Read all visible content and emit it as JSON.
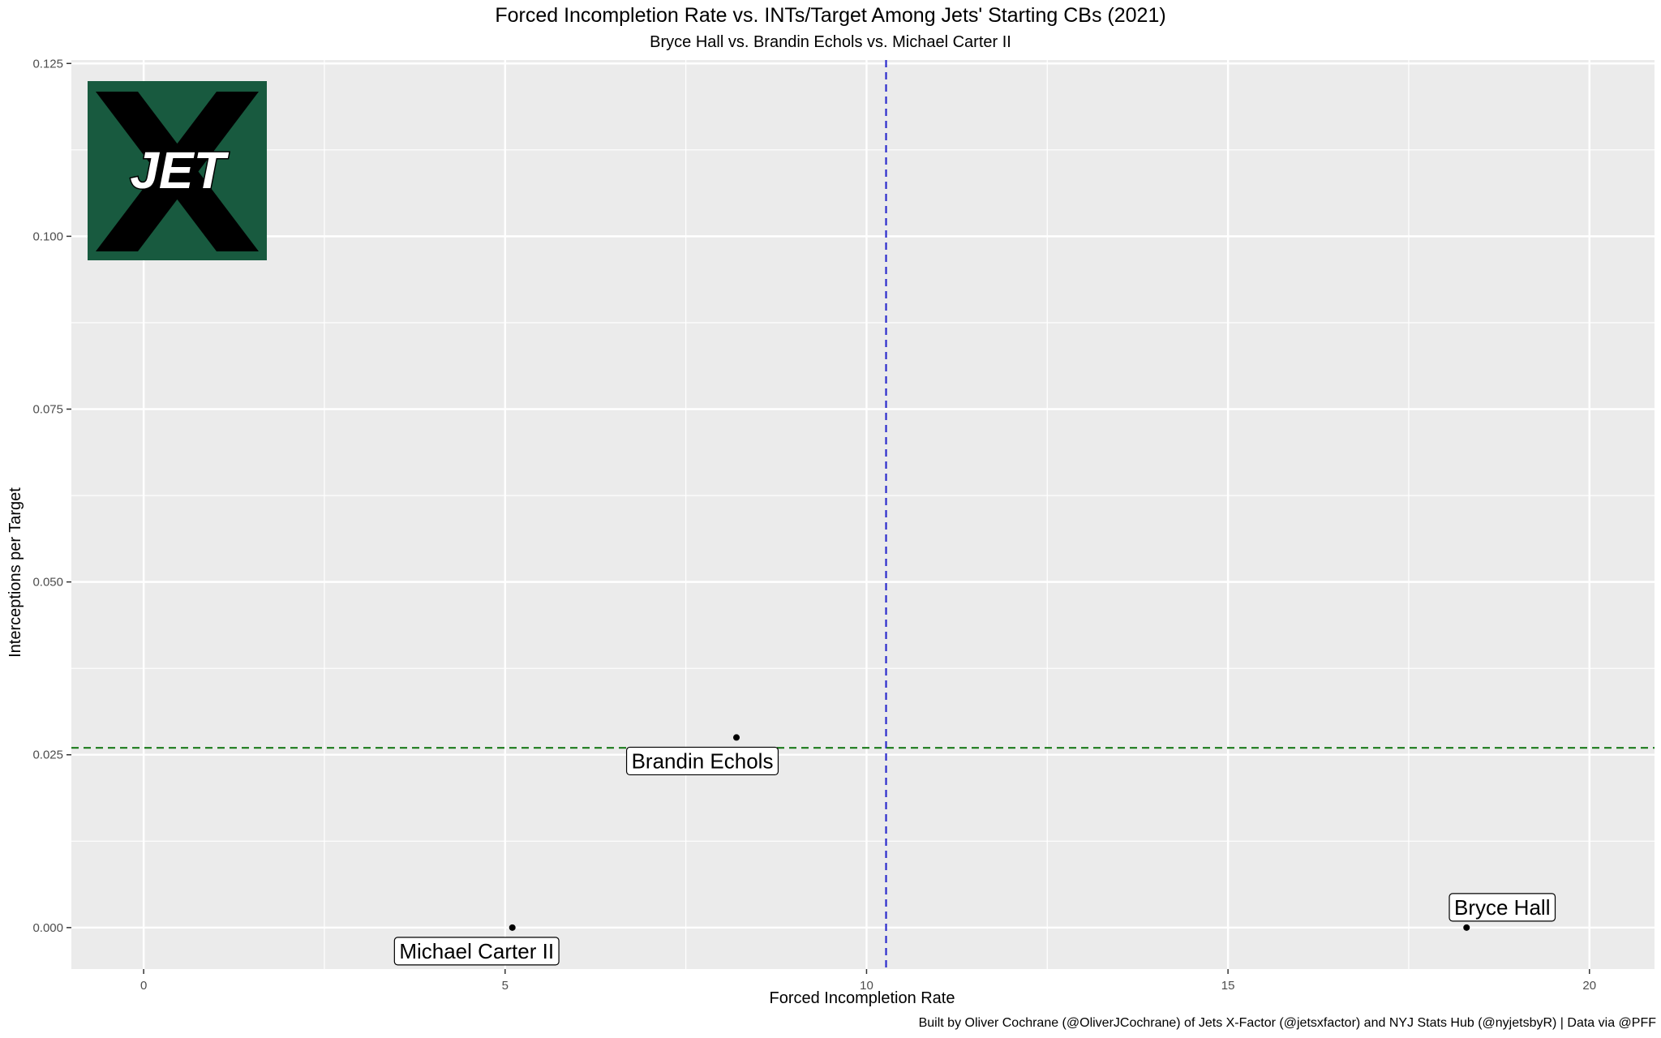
{
  "chart_data": {
    "type": "scatter",
    "title": "Forced Incompletion Rate vs. INTs/Target Among Jets' Starting CBs (2021)",
    "subtitle": "Bryce Hall vs. Brandin Echols vs. Michael Carter II",
    "xlabel": "Forced Incompletion Rate",
    "ylabel": "Interceptions per Target",
    "caption": "Built by Oliver Cochrane (@OliverJCochrane) of Jets X-Factor (@jetsxfactor) and NYJ Stats Hub (@nyjetsbyR) | Data via @PFF",
    "xlim": [
      -1.0,
      20.9
    ],
    "ylim": [
      -0.006,
      0.1255
    ],
    "x_ticks": [
      0,
      5,
      10,
      15,
      20
    ],
    "x_tick_labels": [
      "0",
      "5",
      "10",
      "15",
      "20"
    ],
    "y_ticks": [
      0.0,
      0.025,
      0.05,
      0.075,
      0.1,
      0.125
    ],
    "y_tick_labels": [
      "0.000",
      "0.025",
      "0.050",
      "0.075",
      "0.100",
      "0.125"
    ],
    "grid": true,
    "points": [
      {
        "name": "Bryce Hall",
        "x": 18.3,
        "y": 0.0,
        "label_position": "above"
      },
      {
        "name": "Brandin Echols",
        "x": 8.2,
        "y": 0.0275,
        "label_position": "below"
      },
      {
        "name": "Michael Carter II",
        "x": 5.1,
        "y": 0.0,
        "label_position": "below"
      }
    ],
    "reference_lines": [
      {
        "orientation": "vertical",
        "value": 10.27,
        "color": "#2b2bcc",
        "style": "dashed"
      },
      {
        "orientation": "horizontal",
        "value": 0.026,
        "color": "#1a7a1a",
        "style": "dashed"
      }
    ],
    "logo": {
      "text": "JET",
      "background": "#185a3f",
      "x_color": "#000000",
      "text_color": "#ffffff"
    },
    "colors": {
      "panel": "#ebebeb",
      "grid_major": "#ffffff",
      "point": "#000000"
    }
  }
}
